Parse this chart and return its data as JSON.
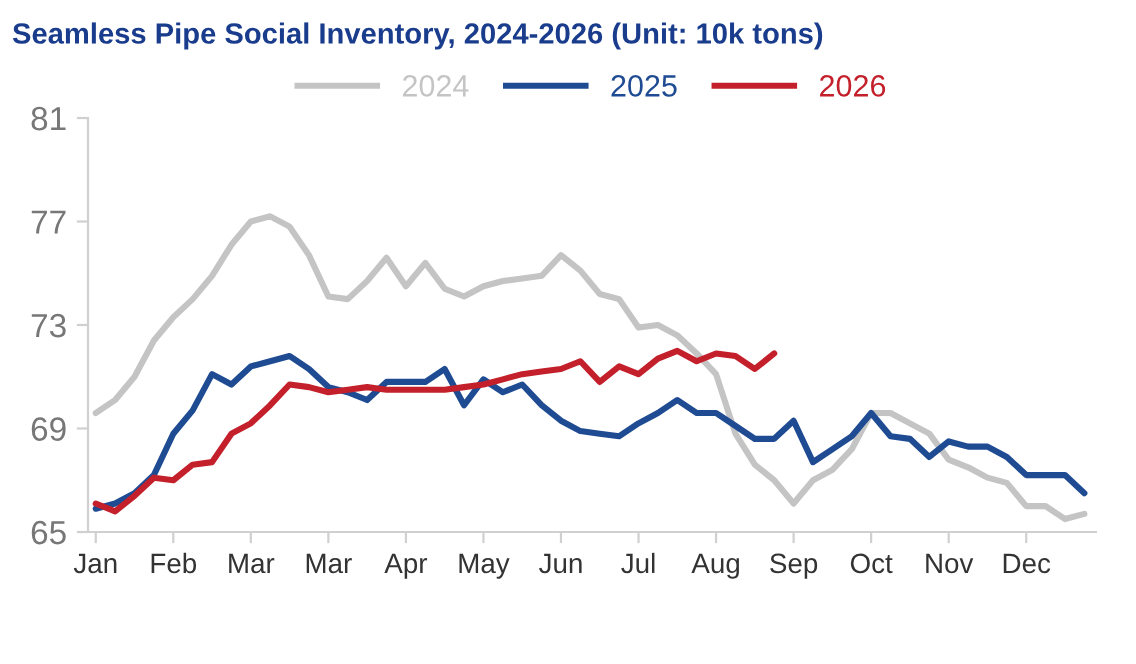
{
  "chart_data": {
    "type": "line",
    "title": "Seamless Pipe Social Inventory, 2024-2026 (Unit: 10k tons)",
    "categories": [
      "Jan",
      null,
      null,
      null,
      "Feb",
      null,
      null,
      null,
      "Mar",
      null,
      null,
      null,
      "Mar",
      null,
      null,
      null,
      "Apr",
      null,
      null,
      null,
      "May",
      null,
      null,
      null,
      "Jun",
      null,
      null,
      null,
      "Jul",
      null,
      null,
      null,
      "Aug",
      null,
      null,
      null,
      "Sep",
      null,
      null,
      null,
      "Oct",
      null,
      null,
      null,
      "Nov",
      null,
      null,
      null,
      "Dec",
      null,
      null,
      null
    ],
    "ylim": [
      65,
      81
    ],
    "yticks": [
      65,
      69,
      73,
      77,
      81
    ],
    "grid": false,
    "legend": "top",
    "marker": "none",
    "line_style": "solid",
    "series": [
      {
        "name": "2024",
        "color": "#c4c4c4",
        "values": [
          69.6,
          70.1,
          71.0,
          72.4,
          73.3,
          74.0,
          74.9,
          76.1,
          77.0,
          77.2,
          76.8,
          75.7,
          74.1,
          74.0,
          74.7,
          75.6,
          74.5,
          75.4,
          74.4,
          74.1,
          74.5,
          74.7,
          74.8,
          74.9,
          75.7,
          75.1,
          74.2,
          74.0,
          72.9,
          73.0,
          72.6,
          71.9,
          71.1,
          68.8,
          67.6,
          67.0,
          66.1,
          67.0,
          67.4,
          68.2,
          69.6,
          69.6,
          69.2,
          68.8,
          67.8,
          67.5,
          67.1,
          66.9,
          66.0,
          66.0,
          65.5,
          65.7
        ]
      },
      {
        "name": "2025",
        "color": "#1f4b93",
        "values": [
          65.9,
          66.1,
          66.5,
          67.2,
          68.8,
          69.7,
          71.1,
          70.7,
          71.4,
          71.6,
          71.8,
          71.3,
          70.6,
          70.4,
          70.1,
          70.8,
          70.8,
          70.8,
          71.3,
          69.9,
          70.9,
          70.4,
          70.7,
          69.9,
          69.3,
          68.9,
          68.8,
          68.7,
          69.2,
          69.6,
          70.1,
          69.6,
          69.6,
          69.1,
          68.6,
          68.6,
          69.3,
          67.7,
          68.2,
          68.7,
          69.6,
          68.7,
          68.6,
          67.9,
          68.5,
          68.3,
          68.3,
          67.9,
          67.2,
          67.2,
          67.2,
          66.5
        ]
      },
      {
        "name": "2026",
        "color": "#c4202b",
        "values": [
          66.1,
          65.8,
          66.4,
          67.1,
          67.0,
          67.6,
          67.7,
          68.8,
          69.2,
          69.9,
          70.7,
          70.6,
          70.4,
          70.5,
          70.6,
          70.5,
          70.5,
          70.5,
          70.5,
          70.6,
          70.7,
          70.9,
          71.1,
          71.2,
          71.3,
          71.6,
          70.8,
          71.4,
          71.1,
          71.7,
          72.0,
          71.6,
          71.9,
          71.8,
          71.3,
          71.9,
          null,
          null,
          null,
          null,
          null,
          null,
          null,
          null,
          null,
          null,
          null,
          null,
          null,
          null,
          null,
          null
        ]
      }
    ]
  }
}
